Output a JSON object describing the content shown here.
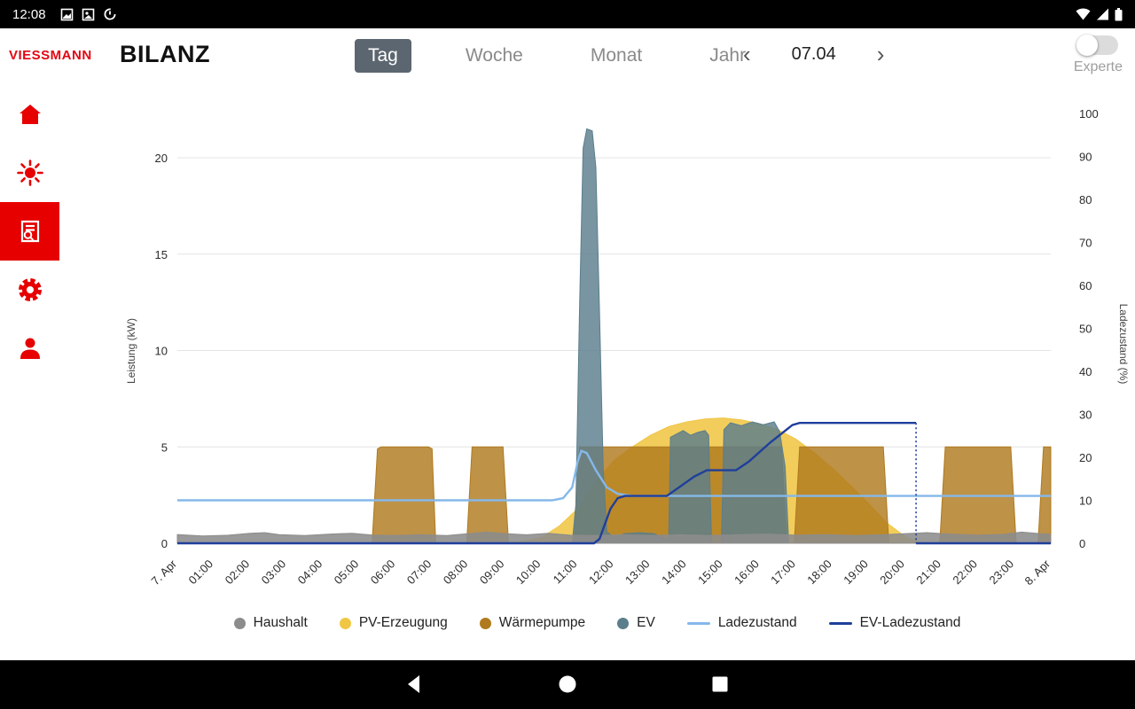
{
  "status_bar": {
    "time": "12:08",
    "left_icons": [
      "screenshot-icon",
      "image-icon",
      "data-saver-icon"
    ],
    "right_icons": [
      "wifi-icon",
      "cellular-signal-icon",
      "battery-icon"
    ]
  },
  "header": {
    "brand": "VIESSMANN",
    "title": "BILANZ",
    "tabs": [
      {
        "label": "Tag",
        "selected": true
      },
      {
        "label": "Woche",
        "selected": false
      },
      {
        "label": "Monat",
        "selected": false
      },
      {
        "label": "Jahr",
        "selected": false
      }
    ],
    "date_nav": {
      "prev": "‹",
      "date": "07.04",
      "next": "›"
    },
    "expert_toggle": {
      "label": "Experte",
      "state": "off"
    }
  },
  "sidebar": {
    "accent": "#e60000",
    "items": [
      {
        "name": "home",
        "selected": false
      },
      {
        "name": "energy",
        "selected": false
      },
      {
        "name": "reports",
        "selected": true
      },
      {
        "name": "settings",
        "selected": false
      },
      {
        "name": "user",
        "selected": false
      }
    ]
  },
  "chart_data": {
    "type": "area",
    "x_unit": "hour",
    "x_range": [
      0,
      24
    ],
    "grid": "horizontal",
    "left_axis": {
      "label": "Leistung (kW)",
      "range": [
        0,
        20
      ],
      "ticks": [
        0,
        5,
        10,
        15,
        20
      ]
    },
    "right_axis": {
      "label": "Ladezustand (%)",
      "range": [
        0,
        100
      ],
      "ticks": [
        0,
        10,
        20,
        30,
        40,
        50,
        60,
        70,
        80,
        90,
        100
      ]
    },
    "x_ticks": [
      {
        "x": 0,
        "label": "7. Apr"
      },
      {
        "x": 1,
        "label": "01:00"
      },
      {
        "x": 2,
        "label": "02:00"
      },
      {
        "x": 3,
        "label": "03:00"
      },
      {
        "x": 4,
        "label": "04:00"
      },
      {
        "x": 5,
        "label": "05:00"
      },
      {
        "x": 6,
        "label": "06:00"
      },
      {
        "x": 7,
        "label": "07:00"
      },
      {
        "x": 8,
        "label": "08:00"
      },
      {
        "x": 9,
        "label": "09:00"
      },
      {
        "x": 10,
        "label": "10:00"
      },
      {
        "x": 11,
        "label": "11:00"
      },
      {
        "x": 12,
        "label": "12:00"
      },
      {
        "x": 13,
        "label": "13:00"
      },
      {
        "x": 14,
        "label": "14:00"
      },
      {
        "x": 15,
        "label": "15:00"
      },
      {
        "x": 16,
        "label": "16:00"
      },
      {
        "x": 17,
        "label": "17:00"
      },
      {
        "x": 18,
        "label": "18:00"
      },
      {
        "x": 19,
        "label": "19:00"
      },
      {
        "x": 20,
        "label": "20:00"
      },
      {
        "x": 21,
        "label": "21:00"
      },
      {
        "x": 22,
        "label": "22:00"
      },
      {
        "x": 23,
        "label": "23:00"
      },
      {
        "x": 24,
        "label": "8. Apr"
      }
    ],
    "series": [
      {
        "name": "PV-Erzeugung",
        "type": "area",
        "axis": "left",
        "color": "#F0C645",
        "opacity": 0.88,
        "points": [
          [
            0,
            0
          ],
          [
            8.8,
            0
          ],
          [
            9.4,
            0.08
          ],
          [
            10,
            0.3
          ],
          [
            10.5,
            0.9
          ],
          [
            11,
            1.8
          ],
          [
            11.5,
            3.2
          ],
          [
            12,
            4.3
          ],
          [
            12.5,
            5.0
          ],
          [
            13,
            5.6
          ],
          [
            13.5,
            6.05
          ],
          [
            14,
            6.3
          ],
          [
            14.5,
            6.45
          ],
          [
            15,
            6.5
          ],
          [
            15.5,
            6.4
          ],
          [
            16,
            6.2
          ],
          [
            16.5,
            5.9
          ],
          [
            17,
            5.4
          ],
          [
            17.5,
            4.7
          ],
          [
            18,
            3.9
          ],
          [
            18.5,
            3.0
          ],
          [
            19,
            2.05
          ],
          [
            19.5,
            1.05
          ],
          [
            20,
            0.35
          ],
          [
            20.4,
            0.05
          ],
          [
            20.7,
            0
          ],
          [
            24,
            0
          ]
        ]
      },
      {
        "name": "Wärmepumpe",
        "type": "area",
        "axis": "left",
        "color": "#B07A1E",
        "opacity": 0.82,
        "points": [
          [
            0,
            0
          ],
          [
            5.35,
            0
          ],
          [
            5.5,
            4.9
          ],
          [
            5.6,
            5
          ],
          [
            6.9,
            5
          ],
          [
            7.0,
            4.9
          ],
          [
            7.1,
            0
          ],
          [
            7.95,
            0
          ],
          [
            8.1,
            5
          ],
          [
            8.95,
            5
          ],
          [
            9.1,
            0
          ],
          [
            10.9,
            0
          ],
          [
            11.05,
            5
          ],
          [
            16.6,
            5
          ],
          [
            16.75,
            0
          ],
          [
            16.95,
            0
          ],
          [
            17.1,
            5
          ],
          [
            19.4,
            5
          ],
          [
            19.55,
            0
          ],
          [
            20.95,
            0
          ],
          [
            21.1,
            5
          ],
          [
            22.9,
            5
          ],
          [
            23.05,
            0
          ],
          [
            23.65,
            0
          ],
          [
            23.8,
            5
          ],
          [
            24,
            5
          ]
        ]
      },
      {
        "name": "EV",
        "type": "area",
        "axis": "left",
        "color": "#5B7E8C",
        "opacity": 0.82,
        "points": [
          [
            0,
            0
          ],
          [
            10.85,
            0
          ],
          [
            10.95,
            2
          ],
          [
            11.05,
            12
          ],
          [
            11.15,
            20.5
          ],
          [
            11.25,
            21.5
          ],
          [
            11.4,
            21.4
          ],
          [
            11.5,
            19.5
          ],
          [
            11.6,
            12
          ],
          [
            11.7,
            4
          ],
          [
            11.8,
            0.6
          ],
          [
            12.0,
            0.3
          ],
          [
            12.3,
            0.5
          ],
          [
            12.7,
            0.55
          ],
          [
            13.1,
            0.5
          ],
          [
            13.4,
            0.2
          ],
          [
            13.5,
            0.15
          ],
          [
            13.55,
            5.5
          ],
          [
            13.7,
            5.65
          ],
          [
            13.9,
            5.85
          ],
          [
            14.1,
            5.6
          ],
          [
            14.3,
            5.75
          ],
          [
            14.5,
            5.85
          ],
          [
            14.6,
            5.6
          ],
          [
            14.68,
            0
          ],
          [
            14.95,
            0
          ],
          [
            15.02,
            5.9
          ],
          [
            15.2,
            6.25
          ],
          [
            15.5,
            6.1
          ],
          [
            15.8,
            6.3
          ],
          [
            16.1,
            6.15
          ],
          [
            16.4,
            6.3
          ],
          [
            16.55,
            5.8
          ],
          [
            16.7,
            4.0
          ],
          [
            16.8,
            0
          ],
          [
            24,
            0
          ]
        ]
      },
      {
        "name": "Haushalt",
        "type": "area",
        "axis": "left",
        "color": "#8C8C8C",
        "opacity": 0.88,
        "points": [
          [
            0,
            0.45
          ],
          [
            0.7,
            0.38
          ],
          [
            1.4,
            0.42
          ],
          [
            2,
            0.52
          ],
          [
            2.4,
            0.55
          ],
          [
            2.8,
            0.45
          ],
          [
            3.5,
            0.4
          ],
          [
            4.2,
            0.48
          ],
          [
            4.8,
            0.52
          ],
          [
            5.4,
            0.42
          ],
          [
            6,
            0.4
          ],
          [
            6.7,
            0.44
          ],
          [
            7.4,
            0.4
          ],
          [
            8,
            0.5
          ],
          [
            8.5,
            0.58
          ],
          [
            9,
            0.5
          ],
          [
            9.6,
            0.44
          ],
          [
            10.2,
            0.52
          ],
          [
            10.8,
            0.42
          ],
          [
            11.5,
            0.4
          ],
          [
            12.2,
            0.44
          ],
          [
            13,
            0.4
          ],
          [
            13.8,
            0.44
          ],
          [
            14.6,
            0.4
          ],
          [
            15.4,
            0.44
          ],
          [
            16.2,
            0.48
          ],
          [
            17,
            0.42
          ],
          [
            17.8,
            0.45
          ],
          [
            18.6,
            0.4
          ],
          [
            19.4,
            0.44
          ],
          [
            20,
            0.5
          ],
          [
            20.6,
            0.55
          ],
          [
            21.2,
            0.48
          ],
          [
            22,
            0.42
          ],
          [
            22.7,
            0.46
          ],
          [
            23.2,
            0.58
          ],
          [
            23.7,
            0.5
          ],
          [
            24,
            0.46
          ]
        ]
      },
      {
        "name": "Ladezustand",
        "type": "line",
        "axis": "right",
        "color": "#85B8EA",
        "points": [
          [
            0,
            10
          ],
          [
            10.3,
            10
          ],
          [
            10.6,
            10.5
          ],
          [
            10.85,
            13
          ],
          [
            11.0,
            19
          ],
          [
            11.1,
            21.5
          ],
          [
            11.25,
            21
          ],
          [
            11.5,
            17
          ],
          [
            11.8,
            13
          ],
          [
            12.1,
            11.5
          ],
          [
            12.5,
            11
          ],
          [
            24,
            11
          ]
        ]
      },
      {
        "name": "EV-Ladezustand",
        "type": "line",
        "axis": "right",
        "color": "#1F3F9B",
        "points": [
          [
            0,
            0
          ],
          [
            11.45,
            0
          ],
          [
            11.6,
            1
          ],
          [
            11.9,
            8
          ],
          [
            12.1,
            10.5
          ],
          [
            12.3,
            11
          ],
          [
            13.45,
            11
          ],
          [
            13.7,
            12.5
          ],
          [
            14.2,
            15.5
          ],
          [
            14.55,
            17
          ],
          [
            15.35,
            17
          ],
          [
            15.7,
            19
          ],
          [
            16.3,
            23.5
          ],
          [
            16.9,
            27.5
          ],
          [
            17.1,
            28
          ],
          [
            20.3,
            28
          ],
          [
            20.3,
            0
          ],
          [
            24,
            0
          ]
        ]
      }
    ]
  },
  "legend": [
    {
      "label": "Haushalt",
      "color": "#8C8C8C",
      "marker": "dot"
    },
    {
      "label": "PV-Erzeugung",
      "color": "#F0C645",
      "marker": "dot"
    },
    {
      "label": "Wärmepumpe",
      "color": "#B07A1E",
      "marker": "dot"
    },
    {
      "label": "EV",
      "color": "#5B7E8C",
      "marker": "dot"
    },
    {
      "label": "Ladezustand",
      "color": "#85B8EA",
      "marker": "line"
    },
    {
      "label": "EV-Ladezustand",
      "color": "#1F3F9B",
      "marker": "line"
    }
  ],
  "nav_bar": {
    "buttons": [
      "back",
      "home",
      "recents"
    ]
  },
  "colors": {
    "accent_red": "#e60000",
    "tab_selected_bg": "#5c6670",
    "statusbar_bg": "#000000",
    "navbar_bg": "#000000"
  }
}
